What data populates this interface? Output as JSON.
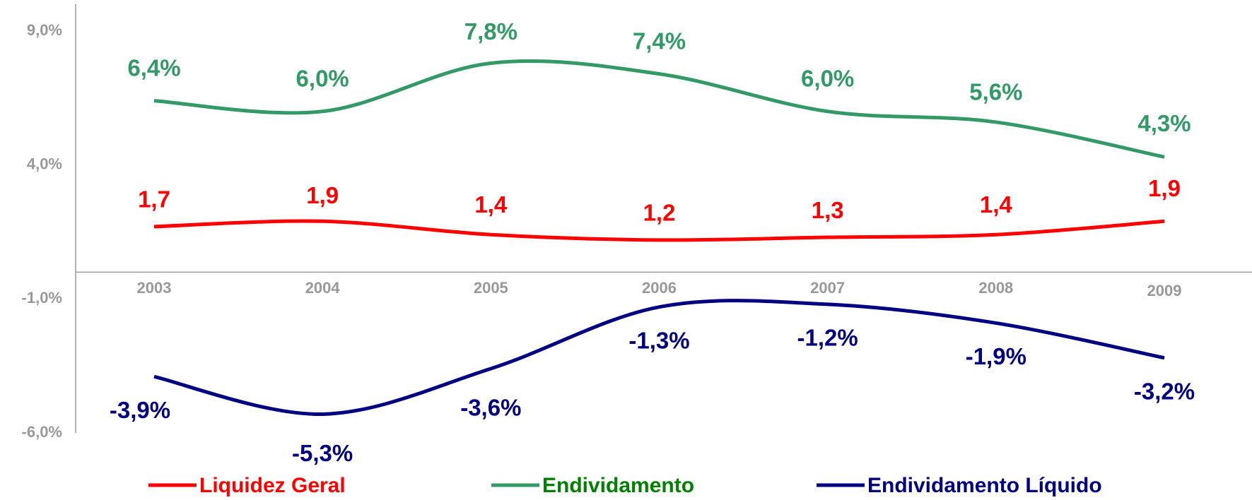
{
  "chart_data": {
    "type": "line",
    "categories": [
      "2003",
      "2004",
      "2005",
      "2006",
      "2007",
      "2008",
      "2009"
    ],
    "ylim": [
      -6,
      10
    ],
    "yticks": [
      {
        "value": 9,
        "label": "9,0%"
      },
      {
        "value": 4,
        "label": "4,0%"
      },
      {
        "value": -1,
        "label": "-1,0%"
      },
      {
        "value": -6,
        "label": "-6,0%"
      }
    ],
    "series": [
      {
        "name": "Liquidez Geral",
        "color": "#ff0000",
        "legend_color": "#ff0000",
        "values": [
          1.7,
          1.9,
          1.4,
          1.2,
          1.3,
          1.4,
          1.9
        ],
        "value_labels": [
          "1,7",
          "1,9",
          "1,4",
          "1,2",
          "1,3",
          "1,4",
          "1,9"
        ]
      },
      {
        "name": "Endividamento",
        "color": "#339966",
        "legend_color": "#008000",
        "values": [
          6.4,
          6.0,
          7.8,
          7.4,
          6.0,
          5.6,
          4.3
        ],
        "value_labels": [
          "6,4%",
          "6,0%",
          "7,8%",
          "7,4%",
          "6,0%",
          "5,6%",
          "4,3%"
        ]
      },
      {
        "name": "Endividamento Líquido",
        "color": "#000080",
        "legend_color": "#000080",
        "values": [
          -3.9,
          -5.3,
          -3.6,
          -1.3,
          -1.2,
          -1.9,
          -3.2
        ],
        "value_labels": [
          "-3,9%",
          "-5,3%",
          "-3,6%",
          "-1,3%",
          "-1,2%",
          "-1,9%",
          "-3,2%"
        ]
      }
    ]
  }
}
